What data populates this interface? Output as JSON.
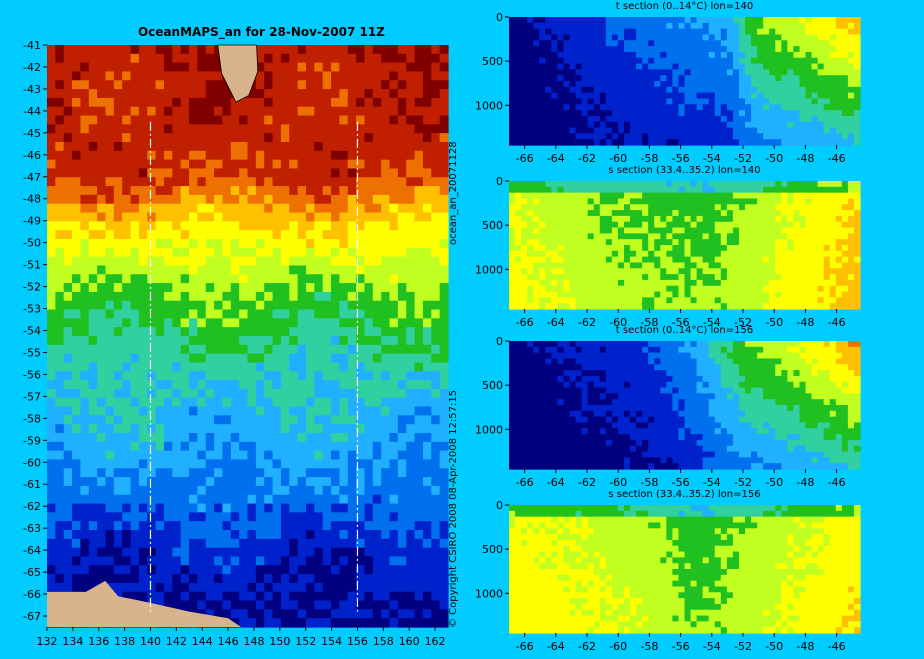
{
  "chart_data": [
    {
      "type": "heatmap",
      "title": "OceanMAPS_an for 28-Nov-2007 11Z",
      "x_ticks": [
        "132",
        "134",
        "136",
        "138",
        "140",
        "142",
        "144",
        "146",
        "148",
        "150",
        "152",
        "154",
        "156",
        "158",
        "160",
        "162"
      ],
      "y_ticks": [
        "-41",
        "-42",
        "-43",
        "-44",
        "-45",
        "-46",
        "-47",
        "-48",
        "-49",
        "-50",
        "-51",
        "-52",
        "-53",
        "-54",
        "-55",
        "-56",
        "-57",
        "-58",
        "-59",
        "-60",
        "-61",
        "-62",
        "-63",
        "-64",
        "-65",
        "-66",
        "-67"
      ],
      "xlim": [
        132,
        163
      ],
      "ylim": [
        -67.5,
        -41
      ],
      "section_lines_lon": [
        140,
        156
      ],
      "temperature_bands": [
        {
          "lat": -41,
          "level": 0.9
        },
        {
          "lat": -47,
          "level": 0.86
        },
        {
          "lat": -48.5,
          "level": 0.72
        },
        {
          "lat": -50,
          "level": 0.62
        },
        {
          "lat": -52,
          "level": 0.5
        },
        {
          "lat": -54.5,
          "level": 0.4
        },
        {
          "lat": -56.5,
          "level": 0.34
        },
        {
          "lat": -59.5,
          "level": 0.27
        },
        {
          "lat": -62,
          "level": 0.2
        },
        {
          "lat": -64,
          "level": 0.12
        },
        {
          "lat": -67.5,
          "level": 0.06
        }
      ]
    },
    {
      "type": "heatmap",
      "title": "t section (0..14°C) lon=140",
      "x_ticks": [
        "-66",
        "-64",
        "-62",
        "-60",
        "-58",
        "-56",
        "-54",
        "-52",
        "-50",
        "-48",
        "-46"
      ],
      "y_ticks": [
        "0",
        "500",
        "1000"
      ],
      "xlim": [
        -67,
        -44.5
      ],
      "ylim": [
        1450,
        0
      ],
      "profile_levels": [
        {
          "lat": -67,
          "level": 0.03
        },
        {
          "lat": -64,
          "level": 0.1
        },
        {
          "lat": -60,
          "level": 0.18
        },
        {
          "lat": -56,
          "level": 0.24
        },
        {
          "lat": -53,
          "level": 0.28
        },
        {
          "lat": -51,
          "level": 0.52
        },
        {
          "lat": -48,
          "level": 0.6
        },
        {
          "lat": -44.5,
          "level": 0.74
        }
      ]
    },
    {
      "type": "heatmap",
      "title": "s section (33.4..35.2) lon=140",
      "x_ticks": [
        "-66",
        "-64",
        "-62",
        "-60",
        "-58",
        "-56",
        "-54",
        "-52",
        "-50",
        "-48",
        "-46"
      ],
      "y_ticks": [
        "0",
        "500",
        "1000"
      ],
      "xlim": [
        -67,
        -44.5
      ],
      "ylim": [
        1450,
        0
      ],
      "profile_levels": [
        {
          "lat": -67,
          "level": 0.58
        },
        {
          "lat": -60,
          "level": 0.48
        },
        {
          "lat": -54,
          "level": 0.46
        },
        {
          "lat": -50,
          "level": 0.55
        },
        {
          "lat": -44.5,
          "level": 0.66
        }
      ]
    },
    {
      "type": "heatmap",
      "title": "t section (0..14°C) lon=156",
      "x_ticks": [
        "-66",
        "-64",
        "-62",
        "-60",
        "-58",
        "-56",
        "-54",
        "-52",
        "-50",
        "-48",
        "-46"
      ],
      "y_ticks": [
        "0",
        "500",
        "1000"
      ],
      "xlim": [
        -67,
        -44.5
      ],
      "ylim": [
        1450,
        0
      ],
      "profile_levels": [
        {
          "lat": -67,
          "level": 0.04
        },
        {
          "lat": -62,
          "level": 0.1
        },
        {
          "lat": -58,
          "level": 0.16
        },
        {
          "lat": -55,
          "level": 0.28
        },
        {
          "lat": -52,
          "level": 0.5
        },
        {
          "lat": -48,
          "level": 0.62
        },
        {
          "lat": -44.5,
          "level": 0.78
        }
      ]
    },
    {
      "type": "heatmap",
      "title": "s section (33.4..35.2) lon=156",
      "x_ticks": [
        "-66",
        "-64",
        "-62",
        "-60",
        "-58",
        "-56",
        "-54",
        "-52",
        "-50",
        "-48",
        "-46"
      ],
      "y_ticks": [
        "0",
        "500",
        "1000"
      ],
      "xlim": [
        -67,
        -44.5
      ],
      "ylim": [
        1450,
        0
      ],
      "profile_levels": [
        {
          "lat": -67,
          "level": 0.6
        },
        {
          "lat": -58,
          "level": 0.52
        },
        {
          "lat": -55,
          "level": 0.44
        },
        {
          "lat": -51,
          "level": 0.52
        },
        {
          "lat": -44.5,
          "level": 0.62
        }
      ]
    }
  ],
  "side_text": {
    "run_label": "ocean_an_20071128",
    "footer": "© Copyright CSIRO 2008   08-Apr-2008 12:57:15"
  },
  "colors": {
    "background": "#00ccff",
    "land": "#d9b38c",
    "coastline": "#33cc99",
    "colormap": [
      "#000080",
      "#0022cc",
      "#0070ee",
      "#20b0ff",
      "#30d0a0",
      "#20c020",
      "#c0ff20",
      "#ffff00",
      "#ffc000",
      "#ee7000",
      "#c02000",
      "#800000"
    ]
  }
}
